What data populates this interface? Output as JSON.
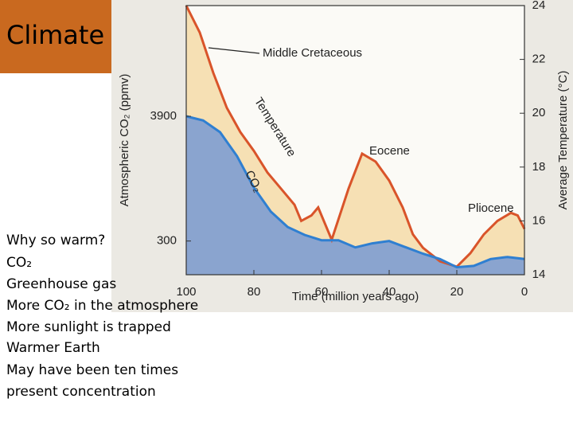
{
  "slide": {
    "title": "Climate",
    "bullets": [
      "Why so warm?",
      "CO₂",
      "Greenhouse gas",
      "More CO₂ in the atmosphere",
      "More sunlight is trapped",
      "Warmer Earth",
      "May have been ten times",
      "present concentration"
    ]
  },
  "chart_data": {
    "type": "area",
    "x_label": "Time (million years ago)",
    "y_label": "Atmospheric CO₂ (ppmv)",
    "y2_label": "Average Temperature (°C)",
    "xlim": [
      100,
      0
    ],
    "xticks": [
      100,
      80,
      60,
      40,
      20,
      0
    ],
    "ylim": [
      150,
      38000
    ],
    "yticks": [
      300,
      3900
    ],
    "log_y": true,
    "y2lim": [
      14,
      24
    ],
    "y2ticks": [
      14,
      16,
      18,
      20,
      22,
      24
    ],
    "annotations": [
      "Middle Cretaceous",
      "Temperature",
      "CO₂",
      "Eocene",
      "Pliocene"
    ],
    "series": [
      {
        "name": "Temperature",
        "color": "#d9542a",
        "fill": "#f6e0b4",
        "axis": "y2",
        "x": [
          100,
          96,
          92,
          88,
          84,
          80,
          76,
          72,
          68,
          66,
          63,
          61,
          57,
          52,
          48,
          44,
          40,
          36,
          33,
          30,
          25,
          20,
          16,
          12,
          8,
          4,
          2,
          0
        ],
        "values": [
          24,
          23,
          21.5,
          20.2,
          19.3,
          18.6,
          17.8,
          17.2,
          16.6,
          16,
          16.2,
          16.5,
          15.3,
          17.2,
          18.5,
          18.2,
          17.5,
          16.5,
          15.5,
          15,
          14.5,
          14.3,
          14.8,
          15.5,
          16,
          16.3,
          16.2,
          15.7
        ]
      },
      {
        "name": "CO₂",
        "color": "#2f7fd1",
        "fill": "#8aa4cf",
        "x": [
          100,
          95,
          90,
          85,
          80,
          75,
          70,
          65,
          60,
          55,
          50,
          45,
          40,
          35,
          30,
          25,
          20,
          15,
          10,
          5,
          0
        ],
        "values": [
          3900,
          3580,
          2810,
          1720,
          900,
          550,
          400,
          340,
          305,
          305,
          263,
          286,
          300,
          263,
          231,
          207,
          175,
          180,
          207,
          216,
          207
        ]
      }
    ]
  }
}
